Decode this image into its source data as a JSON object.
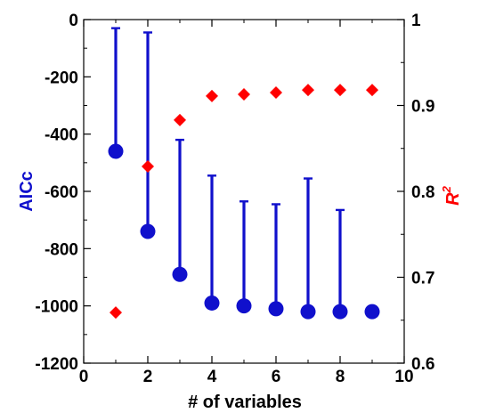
{
  "chart_data": {
    "type": "scatter",
    "xlabel": "# of variables",
    "ylabel_left": "AICc",
    "ylabel_right": "R",
    "ylabel_right_superscript": "2",
    "xlim": [
      0,
      10
    ],
    "ylim_left": [
      -1200,
      0
    ],
    "ylim_right": [
      0.6,
      1.0
    ],
    "x_ticks": [
      "0",
      "2",
      "4",
      "6",
      "8",
      "10"
    ],
    "y_left_ticks": [
      "0",
      "-200",
      "-400",
      "-600",
      "-800",
      "-1000",
      "-1200"
    ],
    "y_right_ticks": [
      "1",
      "0.9",
      "0.8",
      "0.7",
      "0.6"
    ],
    "grid": false,
    "series": [
      {
        "name": "AICc",
        "axis": "left",
        "marker": "circle",
        "color": "#1010cc",
        "x": [
          1,
          2,
          3,
          4,
          5,
          6,
          7,
          8,
          9
        ],
        "y": [
          -460,
          -740,
          -890,
          -990,
          -1000,
          -1010,
          -1020,
          -1020,
          -1020
        ],
        "error_top": [
          -30,
          -45,
          -420,
          -545,
          -635,
          -645,
          -555,
          -665,
          null
        ]
      },
      {
        "name": "R2",
        "axis": "right",
        "marker": "diamond",
        "color": "#ff0000",
        "x": [
          1,
          2,
          3,
          4,
          5,
          6,
          7,
          8,
          9
        ],
        "y": [
          0.659,
          0.829,
          0.883,
          0.911,
          0.913,
          0.915,
          0.918,
          0.918,
          0.918
        ]
      }
    ]
  }
}
